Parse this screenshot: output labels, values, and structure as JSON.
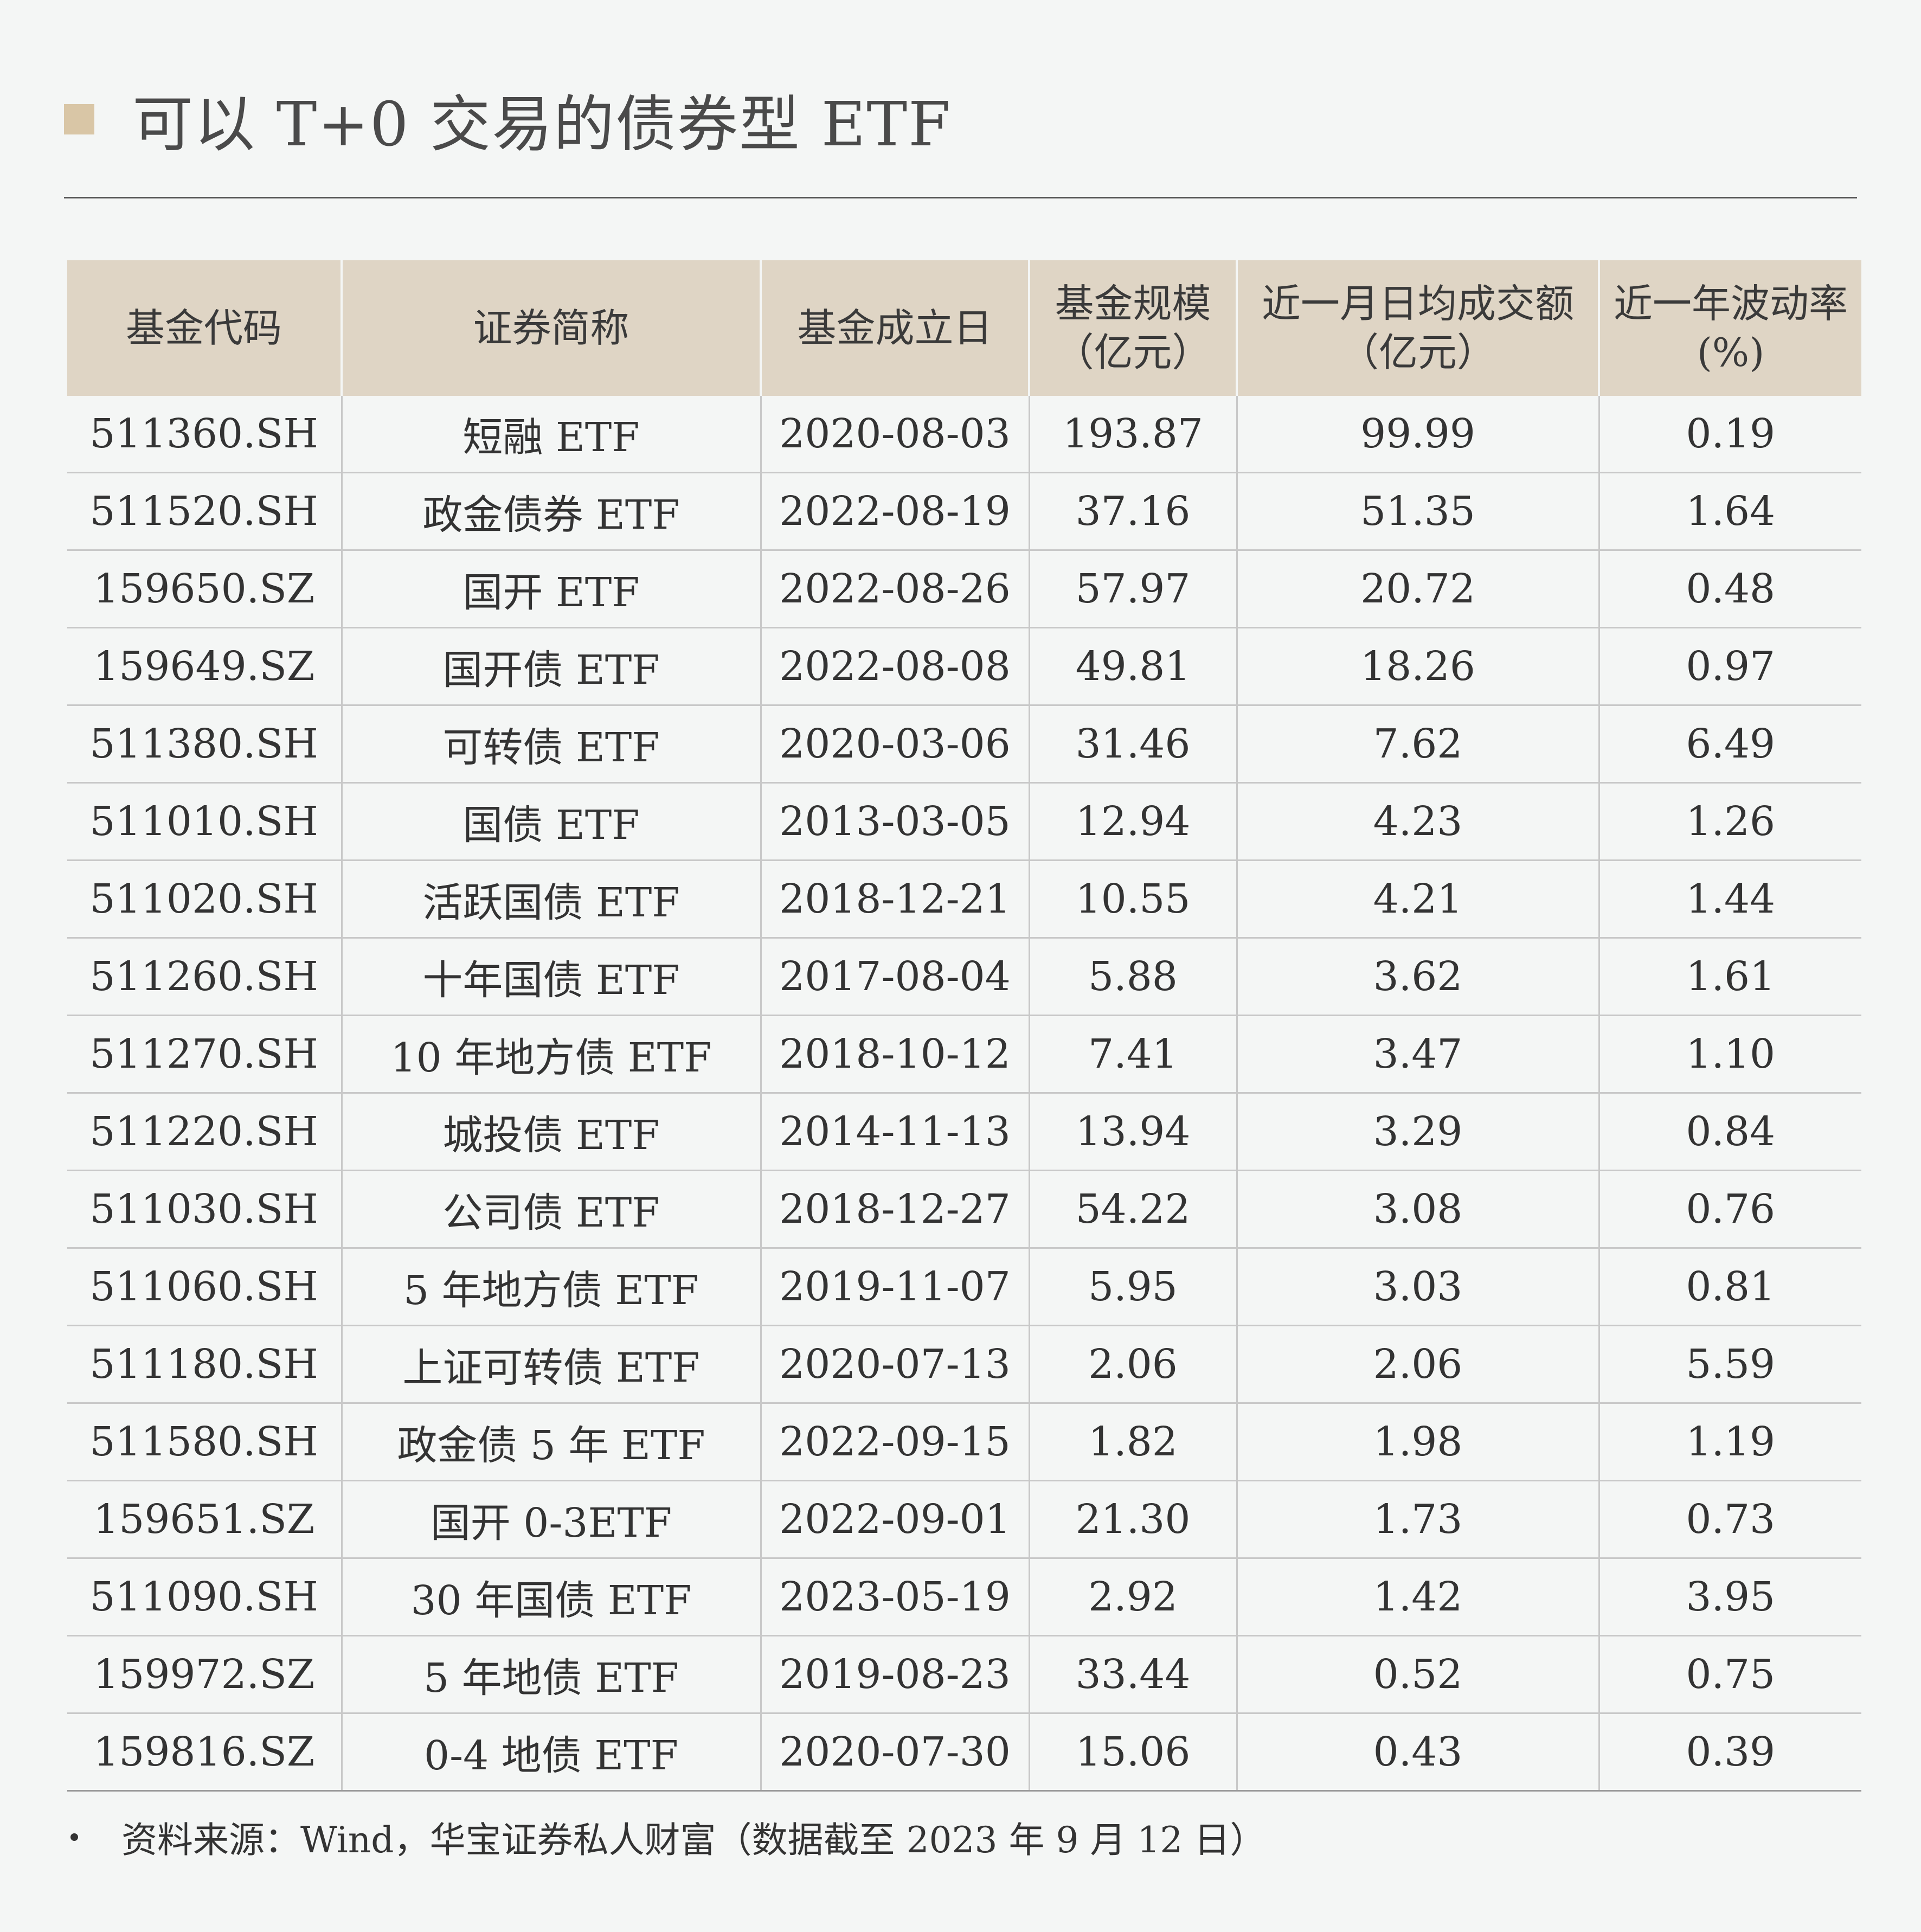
{
  "title": "可以 T+0 交易的债券型 ETF",
  "table": {
    "headers": [
      {
        "line1": "基金代码",
        "line2": ""
      },
      {
        "line1": "证券简称",
        "line2": ""
      },
      {
        "line1": "基金成立日",
        "line2": ""
      },
      {
        "line1": "基金规模",
        "line2": "（亿元）"
      },
      {
        "line1": "近一月日均成交额",
        "line2": "（亿元）"
      },
      {
        "line1": "近一年波动率",
        "line2": "(%)"
      }
    ],
    "rows": [
      [
        "511360.SH",
        "短融 ETF",
        "2020-08-03",
        "193.87",
        "99.99",
        "0.19"
      ],
      [
        "511520.SH",
        "政金债券 ETF",
        "2022-08-19",
        "37.16",
        "51.35",
        "1.64"
      ],
      [
        "159650.SZ",
        "国开 ETF",
        "2022-08-26",
        "57.97",
        "20.72",
        "0.48"
      ],
      [
        "159649.SZ",
        "国开债 ETF",
        "2022-08-08",
        "49.81",
        "18.26",
        "0.97"
      ],
      [
        "511380.SH",
        "可转债 ETF",
        "2020-03-06",
        "31.46",
        "7.62",
        "6.49"
      ],
      [
        "511010.SH",
        "国债 ETF",
        "2013-03-05",
        "12.94",
        "4.23",
        "1.26"
      ],
      [
        "511020.SH",
        "活跃国债 ETF",
        "2018-12-21",
        "10.55",
        "4.21",
        "1.44"
      ],
      [
        "511260.SH",
        "十年国债 ETF",
        "2017-08-04",
        "5.88",
        "3.62",
        "1.61"
      ],
      [
        "511270.SH",
        "10 年地方债 ETF",
        "2018-10-12",
        "7.41",
        "3.47",
        "1.10"
      ],
      [
        "511220.SH",
        "城投债 ETF",
        "2014-11-13",
        "13.94",
        "3.29",
        "0.84"
      ],
      [
        "511030.SH",
        "公司债 ETF",
        "2018-12-27",
        "54.22",
        "3.08",
        "0.76"
      ],
      [
        "511060.SH",
        "5 年地方债 ETF",
        "2019-11-07",
        "5.95",
        "3.03",
        "0.81"
      ],
      [
        "511180.SH",
        "上证可转债 ETF",
        "2020-07-13",
        "2.06",
        "2.06",
        "5.59"
      ],
      [
        "511580.SH",
        "政金债 5 年 ETF",
        "2022-09-15",
        "1.82",
        "1.98",
        "1.19"
      ],
      [
        "159651.SZ",
        "国开 0-3ETF",
        "2022-09-01",
        "21.30",
        "1.73",
        "0.73"
      ],
      [
        "511090.SH",
        "30 年国债 ETF",
        "2023-05-19",
        "2.92",
        "1.42",
        "3.95"
      ],
      [
        "159972.SZ",
        "5 年地债 ETF",
        "2019-08-23",
        "33.44",
        "0.52",
        "0.75"
      ],
      [
        "159816.SZ",
        "0-4 地债 ETF",
        "2020-07-30",
        "15.06",
        "0.43",
        "0.39"
      ]
    ]
  },
  "source": "资料来源：Wind，华宝证券私人财富（数据截至 2023 年 9 月 12 日）",
  "colors": {
    "background": "#f4f6f5",
    "header_fill": "#dfd5c5",
    "title_square": "#d9c6a6",
    "grid_line": "#c8c8c8"
  }
}
